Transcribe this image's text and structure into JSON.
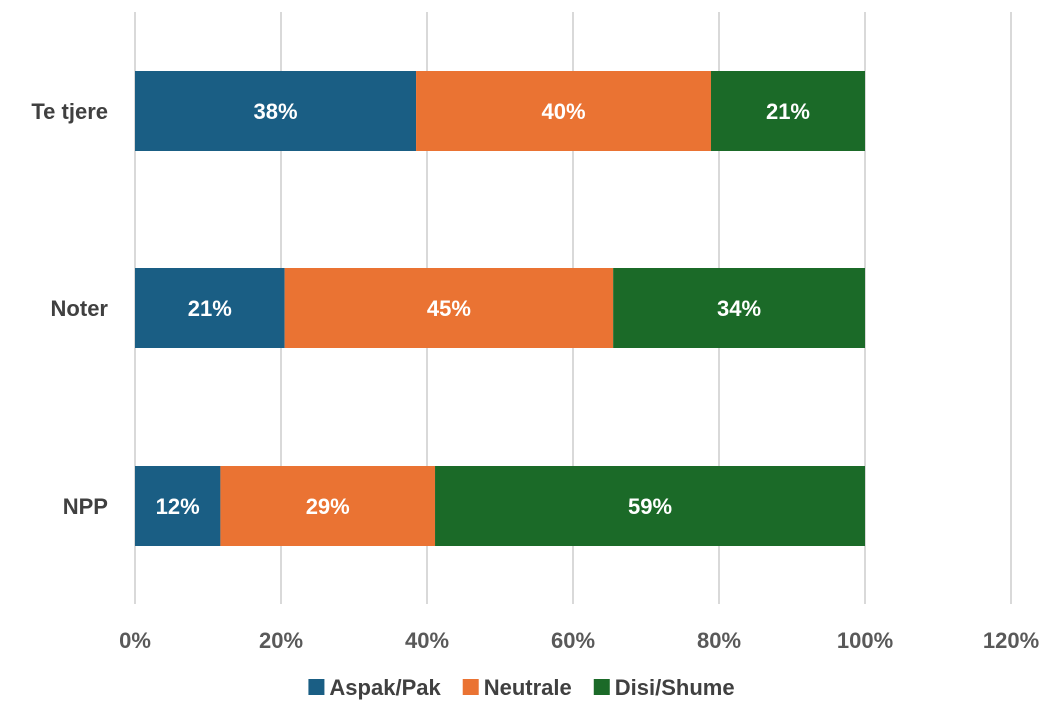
{
  "chart_data": {
    "type": "bar",
    "orientation": "horizontal",
    "stacked": true,
    "title": "",
    "xlabel": "",
    "ylabel": "",
    "categories": [
      "Te tjere",
      "Noter",
      "NPP"
    ],
    "series": [
      {
        "name": "Aspak/Pak",
        "color": "#1a5e84",
        "values": [
          0.385,
          0.205,
          0.117
        ],
        "labels": [
          "38%",
          "21%",
          "12%"
        ]
      },
      {
        "name": "Neutrale",
        "color": "#ea7333",
        "values": [
          0.404,
          0.45,
          0.294
        ],
        "labels": [
          "40%",
          "45%",
          "29%"
        ]
      },
      {
        "name": "Disi/Shume",
        "color": "#1b6a28",
        "values": [
          0.211,
          0.345,
          0.589
        ],
        "labels": [
          "21%",
          "34%",
          "59%"
        ]
      }
    ],
    "xlim": [
      0,
      1.2
    ],
    "x_ticks": [
      0,
      0.2,
      0.4,
      0.6,
      0.8,
      1.0,
      1.2
    ],
    "x_tick_labels": [
      "0%",
      "20%",
      "40%",
      "60%",
      "80%",
      "100%",
      "120%"
    ],
    "grid": "vertical",
    "legend_position": "bottom",
    "colors": {
      "grid": "#d9d9d9",
      "tick_text": "#595959",
      "category_text": "#404040",
      "bar_label_text": "#ffffff",
      "legend_text": "#404040"
    }
  }
}
